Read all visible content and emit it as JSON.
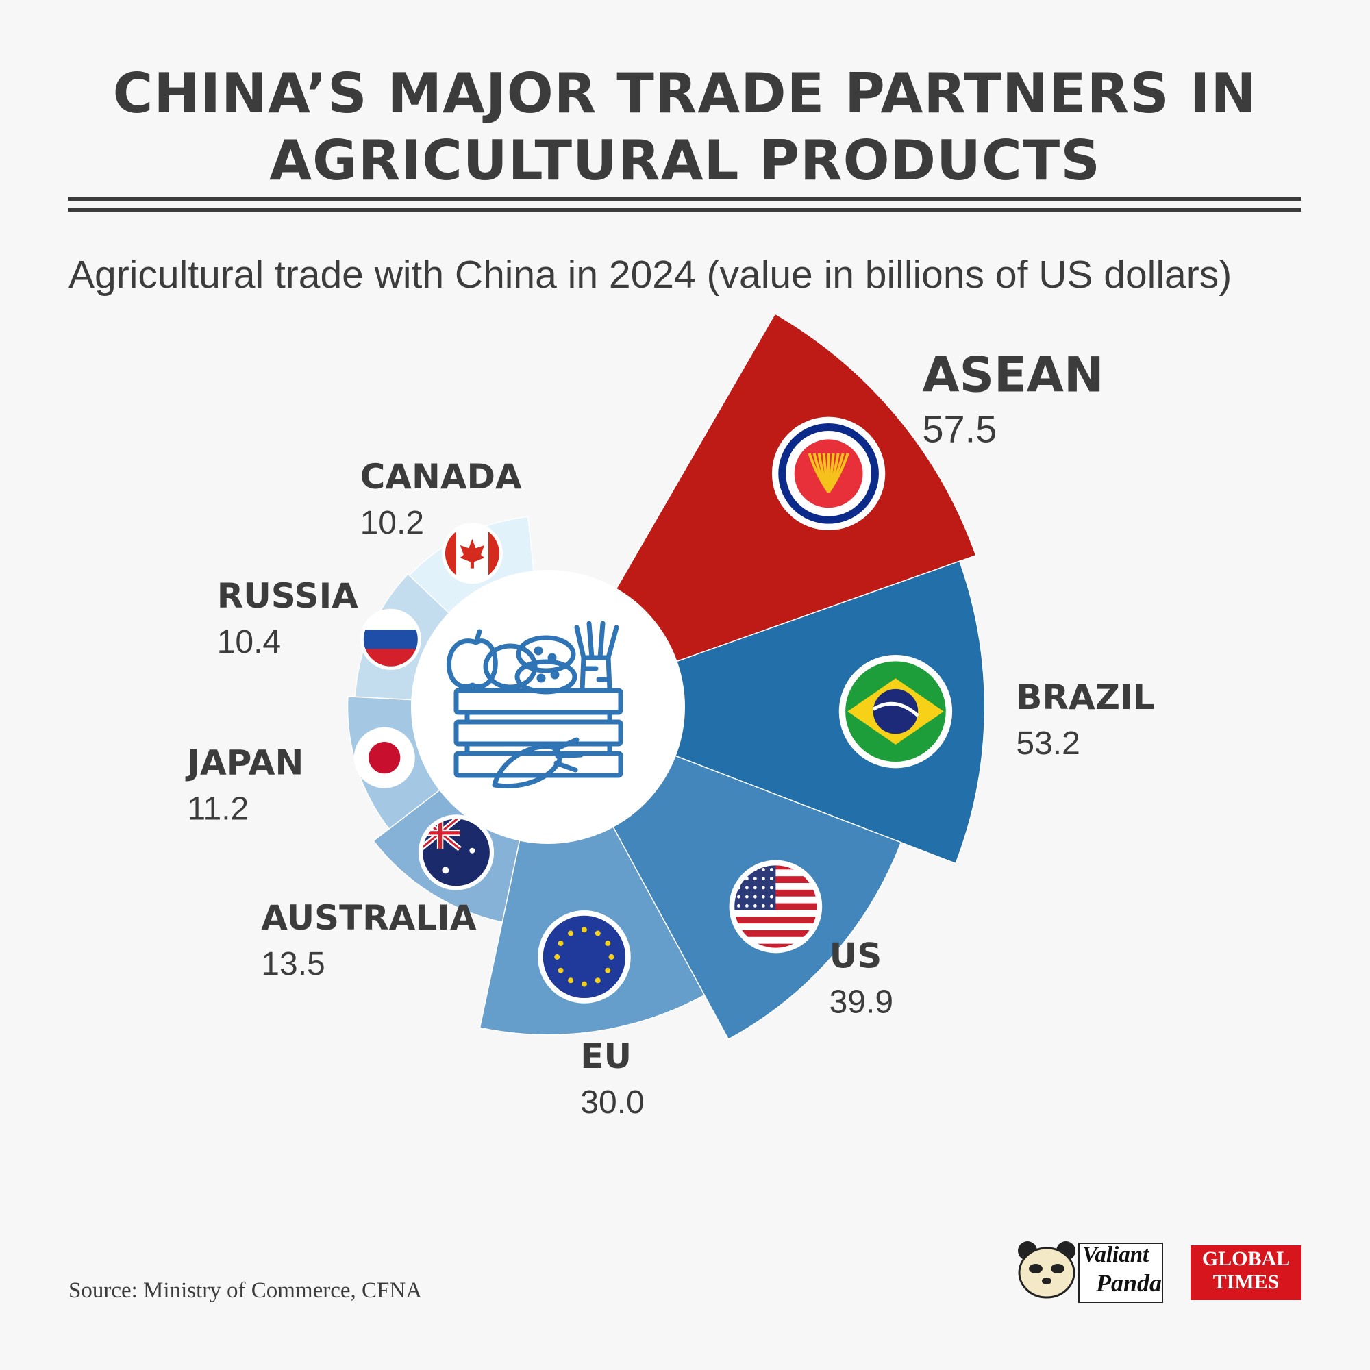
{
  "title": "CHINA’S MAJOR TRADE PARTNERS IN AGRICULTURAL PRODUCTS",
  "subtitle": "Agricultural trade with China in 2024 (value in billions of US dollars)",
  "source": "Source: Ministry of Commerce, CFNA",
  "logos": {
    "valiant_panda": [
      "Valiant",
      "Panda"
    ],
    "global_times": [
      "GLOBAL",
      "TIMES"
    ]
  },
  "chart_data": {
    "type": "polar-area",
    "title": "CHINA’S MAJOR TRADE PARTNERS IN AGRICULTURAL PRODUCTS",
    "subtitle": "Agricultural trade with China in 2024 (value in billions of US dollars)",
    "categories": [
      "ASEAN",
      "BRAZIL",
      "US",
      "EU",
      "AUSTRALIA",
      "JAPAN",
      "RUSSIA",
      "CANADA"
    ],
    "values": [
      57.5,
      53.2,
      39.9,
      30.0,
      13.5,
      11.2,
      10.4,
      10.2
    ],
    "value_labels": [
      "57.5",
      "53.2",
      "39.9",
      "30.0",
      "13.5",
      "11.2",
      "10.4",
      "10.2"
    ],
    "colors": [
      "#be1a16",
      "#236fa9",
      "#4286bc",
      "#659ecb",
      "#86b2d8",
      "#a4c8e4",
      "#c3ddef",
      "#e1f2fb"
    ],
    "flags": [
      "asean-flag",
      "brazil-flag",
      "us-flag",
      "eu-flag",
      "australia-flag",
      "japan-flag",
      "russia-flag",
      "canada-flag"
    ],
    "center_icon": "produce-crate-icon",
    "unit": "billions of US dollars"
  }
}
